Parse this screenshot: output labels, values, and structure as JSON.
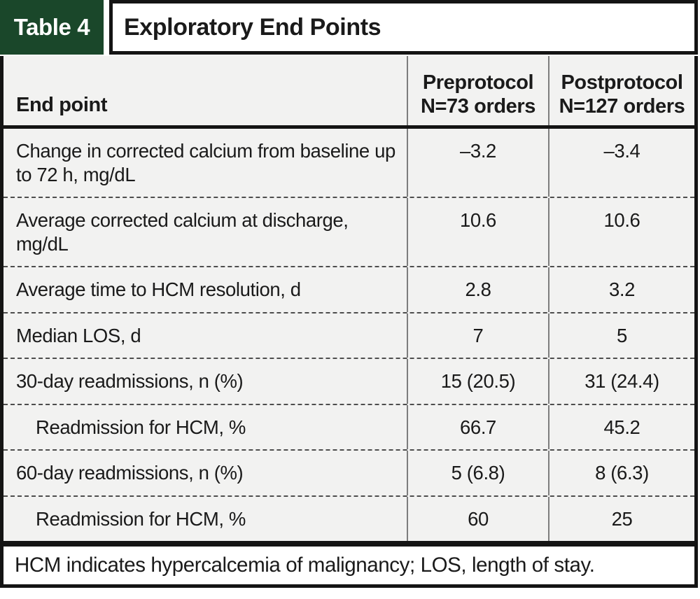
{
  "title_bar": {
    "tag": "Table 4",
    "title": "Exploratory End Points"
  },
  "table": {
    "columns": [
      {
        "label": "End point"
      },
      {
        "label_line1": "Preprotocol",
        "label_line2": "N=73 orders"
      },
      {
        "label_line1": "Postprotocol",
        "label_line2": "N=127 orders"
      }
    ],
    "rows": [
      {
        "label": "Change in corrected calcium from baseline up to 72 h, mg/dL",
        "pre": "–3.2",
        "post": "–3.4",
        "indent": false
      },
      {
        "label": "Average corrected calcium at discharge, mg/dL",
        "pre": "10.6",
        "post": "10.6",
        "indent": false
      },
      {
        "label": "Average time to HCM resolution, d",
        "pre": "2.8",
        "post": "3.2",
        "indent": false
      },
      {
        "label": "Median LOS, d",
        "pre": "7",
        "post": "5",
        "indent": false
      },
      {
        "label": "30-day readmissions, n (%)",
        "pre": "15 (20.5)",
        "post": "31 (24.4)",
        "indent": false
      },
      {
        "label": "Readmission for HCM, %",
        "pre": "66.7",
        "post": "45.2",
        "indent": true
      },
      {
        "label": "60-day readmissions, n (%)",
        "pre": "5 (6.8)",
        "post": "8 (6.3)",
        "indent": false
      },
      {
        "label": "Readmission for HCM, %",
        "pre": "60",
        "post": "25",
        "indent": true
      }
    ]
  },
  "footnote": "HCM indicates hypercalcemia of malignancy; LOS, length of stay.",
  "colors": {
    "accent_green": "#1a472a",
    "row_bg": "#f2f2f1",
    "border_dark": "#141414"
  }
}
